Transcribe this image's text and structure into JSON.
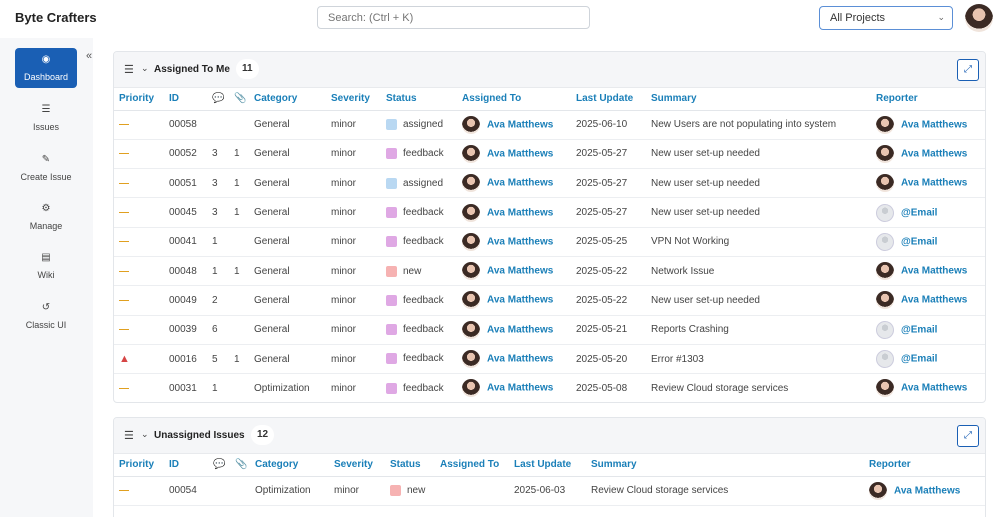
{
  "app": {
    "brand": "Byte Crafters"
  },
  "search": {
    "placeholder": "Search: (Ctrl + K)"
  },
  "project_select": {
    "value": "All Projects"
  },
  "sidebar": {
    "items": [
      {
        "label": "Dashboard",
        "icon": "dashboard-icon",
        "glyph": "◉",
        "active": true
      },
      {
        "label": "Issues",
        "icon": "list-icon",
        "glyph": "☰"
      },
      {
        "label": "Create Issue",
        "icon": "edit-icon",
        "glyph": "✎"
      },
      {
        "label": "Manage",
        "icon": "gears-icon",
        "glyph": "⚙"
      },
      {
        "label": "Wiki",
        "icon": "document-icon",
        "glyph": "▤"
      },
      {
        "label": "Classic UI",
        "icon": "history-icon",
        "glyph": "↺"
      }
    ]
  },
  "assigned": {
    "title": "Assigned To Me",
    "count": "11",
    "columns": [
      "Priority",
      "ID",
      "",
      "",
      "Category",
      "Severity",
      "Status",
      "Assigned To",
      "Last Update",
      "Summary",
      "Reporter"
    ],
    "rows": [
      {
        "priority": "—",
        "id": "00058",
        "notes": "",
        "attachments": "",
        "category": "General",
        "severity": "minor",
        "status": "assigned",
        "assigned_to": "Ava Matthews",
        "last_update": "2025-06-10",
        "summary": "New Users are not populating into system",
        "reporter": "Ava Matthews",
        "reporter_avatar": "female"
      },
      {
        "priority": "—",
        "id": "00052",
        "notes": "3",
        "attachments": "1",
        "category": "General",
        "severity": "minor",
        "status": "feedback",
        "assigned_to": "Ava Matthews",
        "last_update": "2025-05-27",
        "summary": "New user set-up needed",
        "reporter": "Ava Matthews",
        "reporter_avatar": "female"
      },
      {
        "priority": "—",
        "id": "00051",
        "notes": "3",
        "attachments": "1",
        "category": "General",
        "severity": "minor",
        "status": "assigned",
        "assigned_to": "Ava Matthews",
        "last_update": "2025-05-27",
        "summary": "New user set-up needed",
        "reporter": "Ava Matthews",
        "reporter_avatar": "female"
      },
      {
        "priority": "—",
        "id": "00045",
        "notes": "3",
        "attachments": "1",
        "category": "General",
        "severity": "minor",
        "status": "feedback",
        "assigned_to": "Ava Matthews",
        "last_update": "2025-05-27",
        "summary": "New user set-up needed",
        "reporter": "@Email",
        "reporter_avatar": "default"
      },
      {
        "priority": "—",
        "id": "00041",
        "notes": "1",
        "attachments": "",
        "category": "General",
        "severity": "minor",
        "status": "feedback",
        "assigned_to": "Ava Matthews",
        "last_update": "2025-05-25",
        "summary": "VPN Not Working",
        "reporter": "@Email",
        "reporter_avatar": "default"
      },
      {
        "priority": "—",
        "id": "00048",
        "notes": "1",
        "attachments": "1",
        "category": "General",
        "severity": "minor",
        "status": "new",
        "assigned_to": "Ava Matthews",
        "last_update": "2025-05-22",
        "summary": "Network Issue",
        "reporter": "Ava Matthews",
        "reporter_avatar": "female"
      },
      {
        "priority": "—",
        "id": "00049",
        "notes": "2",
        "attachments": "",
        "category": "General",
        "severity": "minor",
        "status": "feedback",
        "assigned_to": "Ava Matthews",
        "last_update": "2025-05-22",
        "summary": "New user set-up needed",
        "reporter": "Ava Matthews",
        "reporter_avatar": "female"
      },
      {
        "priority": "—",
        "id": "00039",
        "notes": "6",
        "attachments": "",
        "category": "General",
        "severity": "minor",
        "status": "feedback",
        "assigned_to": "Ava Matthews",
        "last_update": "2025-05-21",
        "summary": "Reports Crashing",
        "reporter": "@Email",
        "reporter_avatar": "default"
      },
      {
        "priority": "▲",
        "id": "00016",
        "notes": "5",
        "attachments": "1",
        "category": "General",
        "severity": "minor",
        "status": "feedback",
        "assigned_to": "Ava Matthews",
        "last_update": "2025-05-20",
        "summary": "Error #1303",
        "reporter": "@Email",
        "reporter_avatar": "default"
      },
      {
        "priority": "—",
        "id": "00031",
        "notes": "1",
        "attachments": "",
        "category": "Optimization",
        "severity": "minor",
        "status": "feedback",
        "assigned_to": "Ava Matthews",
        "last_update": "2025-05-08",
        "summary": "Review Cloud storage services",
        "reporter": "Ava Matthews",
        "reporter_avatar": "female"
      }
    ]
  },
  "unassigned": {
    "title": "Unassigned Issues",
    "count": "12",
    "columns": [
      "Priority",
      "ID",
      "",
      "",
      "Category",
      "Severity",
      "Status",
      "Assigned To",
      "Last Update",
      "Summary",
      "Reporter"
    ],
    "rows": [
      {
        "priority": "—",
        "id": "00054",
        "notes": "",
        "attachments": "",
        "category": "Optimization",
        "severity": "minor",
        "status": "new",
        "assigned_to": "",
        "last_update": "2025-06-03",
        "summary": "Review Cloud storage services",
        "reporter": "Ava Matthews",
        "reporter_avatar": "female"
      }
    ]
  },
  "status_colors": {
    "assigned": "#b9d8f2",
    "feedback": "#dfa8e4",
    "new": "#f6b2b2"
  },
  "colors": {
    "accent": "#1a5fb4",
    "link": "#1a7fb8",
    "priority_normal": "#e0a020",
    "priority_high": "#d64545"
  }
}
